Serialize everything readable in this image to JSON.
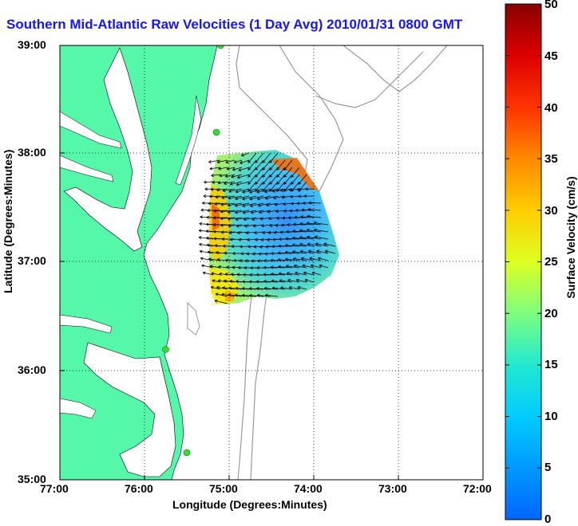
{
  "title": "Southern Mid-Atlantic Raw Velocities (1 Day Avg) 2010/01/31 0800 GMT",
  "xlabel": "Longitude (Degrees:Minutes)",
  "ylabel": "Latitude (Degrees:Minutes)",
  "x_ticks": [
    "77:00",
    "76:00",
    "75:00",
    "74:00",
    "73:00",
    "72:00"
  ],
  "y_ticks": [
    "39:00",
    "38:00",
    "37:00",
    "36:00",
    "35:00"
  ],
  "colorbar": {
    "label": "Surface Velocity (cm/s)",
    "ticks": [
      "50",
      "45",
      "40",
      "35",
      "30",
      "25",
      "20",
      "15",
      "10",
      "5",
      "0"
    ],
    "min": 0,
    "max": 50
  },
  "colors": {
    "land": "#55f7a9",
    "water": "#ffffff",
    "station": "#33dd33",
    "title": "#1414ff"
  },
  "chart_data": {
    "type": "map",
    "title": "Southern Mid-Atlantic Raw Velocities (1 Day Avg) 2010/01/31 0800 GMT",
    "xlim": [
      -77,
      -72
    ],
    "ylim": [
      35,
      39
    ],
    "grid": true,
    "colorbar_range": [
      0,
      50
    ],
    "stations": [
      {
        "lon": -75.1,
        "lat": 39.0
      },
      {
        "lon": -75.15,
        "lat": 38.2
      },
      {
        "lon": -75.75,
        "lat": 36.2
      },
      {
        "lon": -75.5,
        "lat": 35.25
      }
    ]
  }
}
